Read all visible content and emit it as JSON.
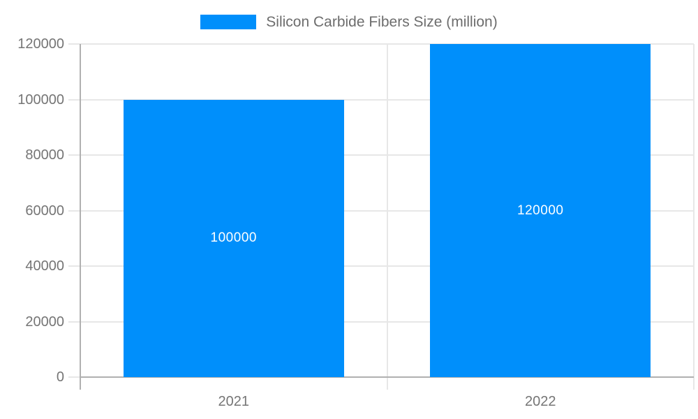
{
  "chart_data": {
    "type": "bar",
    "title": "",
    "xlabel": "",
    "ylabel": "",
    "categories": [
      "2021",
      "2022"
    ],
    "series": [
      {
        "name": "Silicon Carbide Fibers Size (million)",
        "values": [
          100000,
          120000
        ],
        "value_labels": [
          "100000",
          "120000"
        ]
      }
    ],
    "ylim": [
      0,
      120000
    ],
    "ytick_step": 20000,
    "ytick_labels": [
      "0",
      "20000",
      "40000",
      "60000",
      "80000",
      "100000",
      "120000"
    ],
    "grid": "on",
    "legend_position": "top",
    "colors": {
      "bar": "#008ffb",
      "grid": "#e7e7e7",
      "axis": "#b0b0b0",
      "axis_text": "#757575",
      "legend_text": "#6d6d6d",
      "value_label": "#ffffff",
      "background": "#ffffff"
    }
  }
}
